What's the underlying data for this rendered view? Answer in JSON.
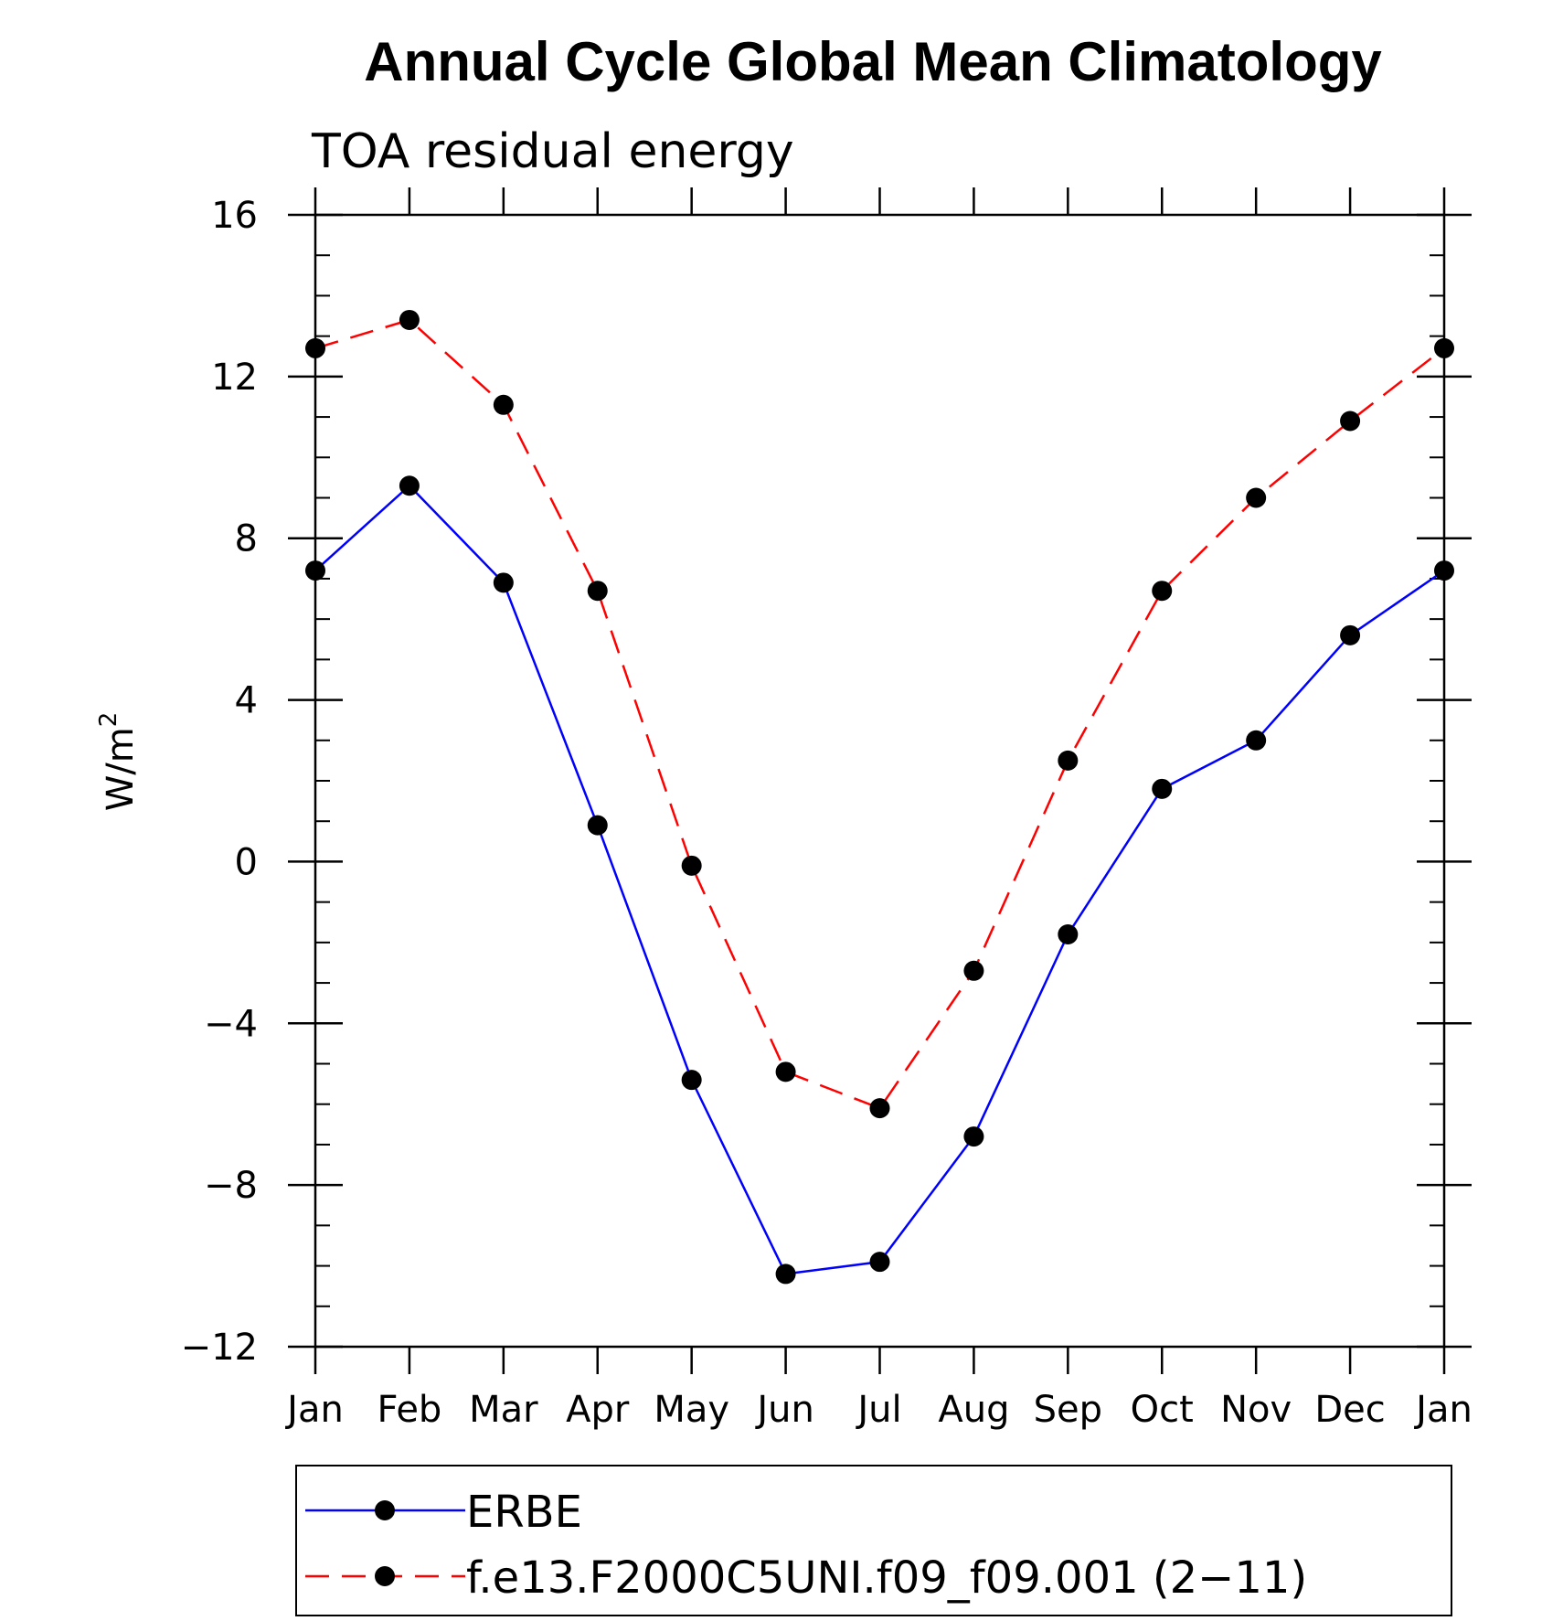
{
  "chart_data": {
    "type": "line",
    "title": "Annual Cycle Global Mean Climatology",
    "subtitle": "TOA residual energy",
    "ylabel": "W/m",
    "ylabel_sup": "2",
    "xlabel": "",
    "categories": [
      "Jan",
      "Feb",
      "Mar",
      "Apr",
      "May",
      "Jun",
      "Jul",
      "Aug",
      "Sep",
      "Oct",
      "Nov",
      "Dec",
      "Jan"
    ],
    "ylim": [
      -12,
      16
    ],
    "yticks": [
      16,
      12,
      8,
      4,
      0,
      -4,
      -8,
      -12
    ],
    "ytick_labels": [
      "16",
      "12",
      "8",
      "4",
      "0",
      "−4",
      "−8",
      "−12"
    ],
    "grid": false,
    "legend_position": "bottom",
    "series": [
      {
        "name": "ERBE",
        "color": "#0000ff",
        "style": "solid",
        "marker": "dot",
        "values": [
          7.2,
          9.3,
          6.9,
          0.9,
          -5.4,
          -10.2,
          -9.9,
          -6.8,
          -1.8,
          1.8,
          3.0,
          5.6,
          7.2
        ]
      },
      {
        "name": "f.e13.F2000C5UNI.f09_f09.001 (2−11)",
        "color": "#ff0000",
        "style": "dashed",
        "marker": "dot",
        "values": [
          12.7,
          13.4,
          11.3,
          6.7,
          -0.1,
          -5.2,
          -6.1,
          -2.7,
          2.5,
          6.7,
          9.0,
          10.9,
          12.7
        ]
      }
    ]
  }
}
